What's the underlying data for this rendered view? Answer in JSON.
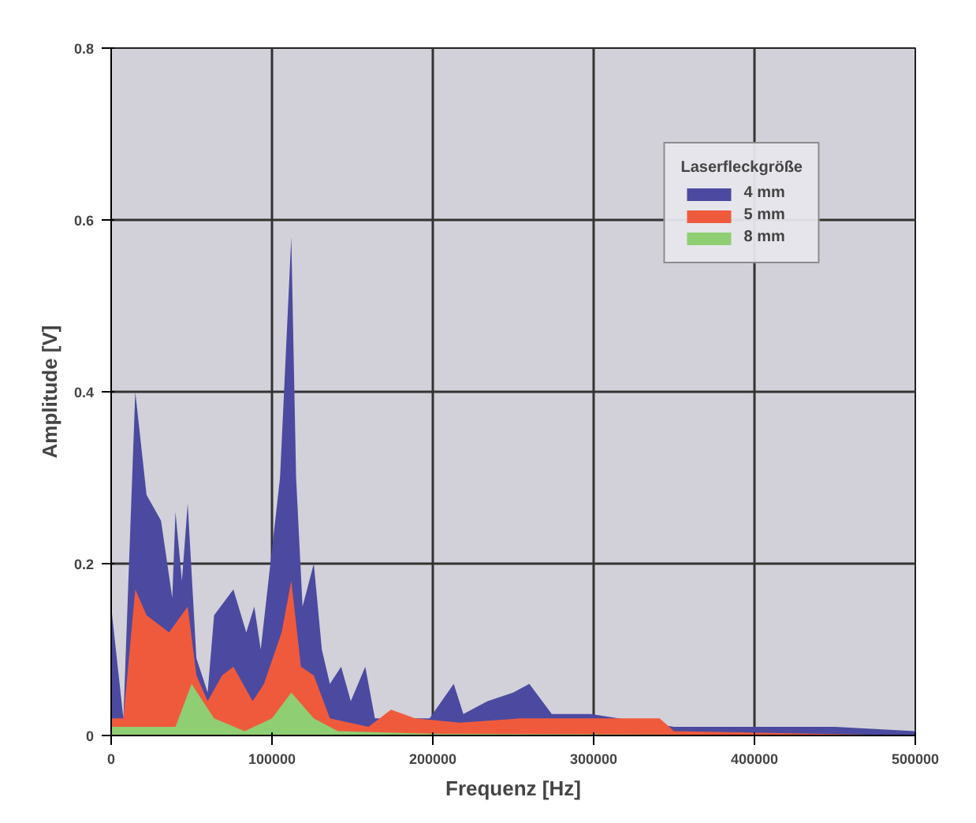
{
  "chart_data": {
    "type": "area",
    "xlabel": "Frequenz [Hz]",
    "ylabel": "Amplitude [V]",
    "legend_title": "Laserfleckgröße",
    "xlim": [
      0,
      500000
    ],
    "ylim": [
      0,
      0.8
    ],
    "xticks": [
      0,
      100000,
      200000,
      300000,
      400000,
      500000
    ],
    "yticks": [
      0,
      0.2,
      0.4,
      0.6,
      0.8
    ],
    "grid": true,
    "legend": "top right",
    "series": [
      {
        "name": "4 mm",
        "color": "#4b4aa0",
        "x": [
          0,
          7600,
          15000,
          22000,
          31000,
          38000,
          40000,
          44000,
          47600,
          53000,
          60000,
          64000,
          76000,
          84000,
          89000,
          93000,
          105000,
          112000,
          115000,
          119000,
          126000,
          131000,
          136000,
          143000,
          149000,
          158000,
          164000,
          198000,
          213000,
          219000,
          234000,
          250000,
          260000,
          274000,
          298000,
          350000,
          400000,
          450000,
          500000
        ],
        "values": [
          0.15,
          0.02,
          0.4,
          0.28,
          0.25,
          0.16,
          0.26,
          0.18,
          0.27,
          0.09,
          0.05,
          0.14,
          0.17,
          0.12,
          0.15,
          0.1,
          0.3,
          0.58,
          0.3,
          0.15,
          0.2,
          0.1,
          0.06,
          0.08,
          0.04,
          0.08,
          0.02,
          0.02,
          0.06,
          0.025,
          0.04,
          0.05,
          0.06,
          0.025,
          0.025,
          0.01,
          0.01,
          0.01,
          0.005
        ]
      },
      {
        "name": "5 mm",
        "color": "#f05a3c",
        "x": [
          0,
          7600,
          15000,
          22000,
          36000,
          47600,
          53000,
          60000,
          69000,
          76000,
          88000,
          95000,
          106000,
          112000,
          118000,
          126000,
          136000,
          160000,
          174000,
          189000,
          217000,
          255000,
          293000,
          341000,
          350000,
          500000
        ],
        "values": [
          0.02,
          0.02,
          0.17,
          0.14,
          0.12,
          0.15,
          0.07,
          0.04,
          0.07,
          0.08,
          0.04,
          0.06,
          0.12,
          0.18,
          0.08,
          0.07,
          0.02,
          0.01,
          0.03,
          0.02,
          0.015,
          0.02,
          0.02,
          0.02,
          0.005,
          0
        ]
      },
      {
        "name": "8 mm",
        "color": "#8fce72",
        "x": [
          0,
          40000,
          50000,
          64000,
          83000,
          100000,
          112000,
          126000,
          141000,
          200000,
          500000
        ],
        "values": [
          0.01,
          0.01,
          0.06,
          0.02,
          0.005,
          0.02,
          0.05,
          0.02,
          0.005,
          0.002,
          0
        ]
      }
    ]
  }
}
